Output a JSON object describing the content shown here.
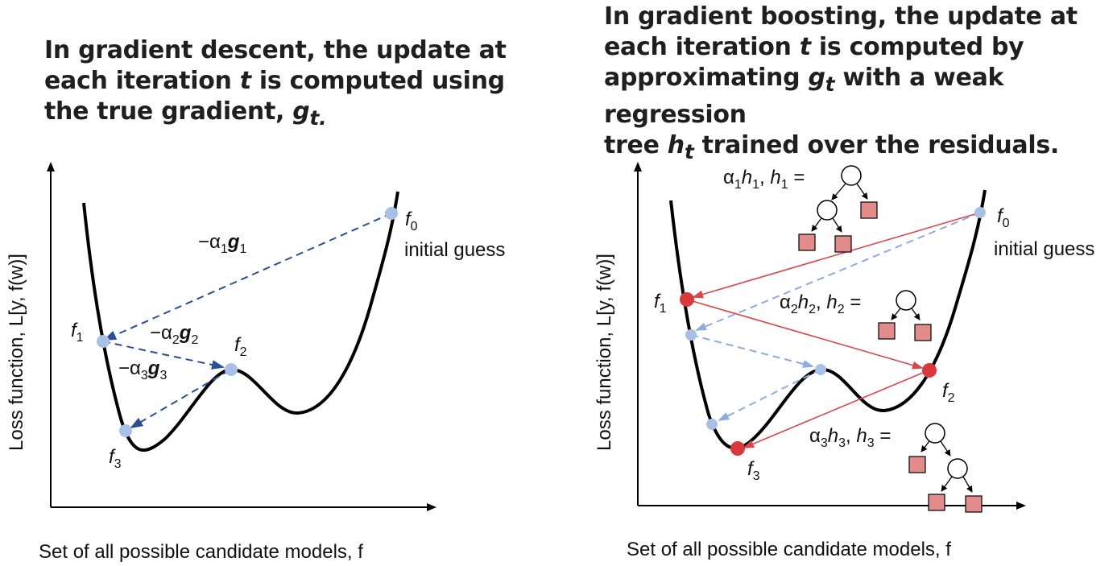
{
  "left_panel": {
    "title_line1": "In gradient descent, the update at",
    "title_line2_pre": "each iteration ",
    "title_t": "t",
    "title_line2_post": " is computed using",
    "title_line3_pre": "the true gradient, ",
    "title_g": "g",
    "title_g_sub": "t.",
    "y_axis_label": "Loss function, L[y, f(w)]",
    "x_axis_label": "Set of all possible candidate models, f",
    "points": {
      "f0": {
        "name": "f",
        "sub": "0",
        "note": "initial guess"
      },
      "f1": {
        "name": "f",
        "sub": "1"
      },
      "f2": {
        "name": "f",
        "sub": "2"
      },
      "f3": {
        "name": "f",
        "sub": "3"
      }
    },
    "steps": [
      {
        "prefix": "−α",
        "sub": "1",
        "g": "g",
        "gsub": "1"
      },
      {
        "prefix": "−α",
        "sub": "2",
        "g": "g",
        "gsub": "2"
      },
      {
        "prefix": "−α",
        "sub": "3",
        "g": "g",
        "gsub": "3"
      }
    ]
  },
  "right_panel": {
    "title_line1": "In gradient boosting, the update at",
    "title_line2_pre": "each iteration ",
    "title_t": "t",
    "title_line2_post": " is computed by",
    "title_line3_pre": "approximating ",
    "title_g": "g",
    "title_g_sub": "t",
    "title_line3_post": " with a weak regression",
    "title_line4_pre": "tree ",
    "title_h": "h",
    "title_h_sub": "t",
    "title_line4_post": " trained over the residuals.",
    "y_axis_label": "Loss function, L[y, f(w)]",
    "x_axis_label": "Set of all possible candidate models, f",
    "points": {
      "f0": {
        "name": "f",
        "sub": "0",
        "note": "initial guess"
      },
      "f1": {
        "name": "f",
        "sub": "1"
      },
      "f2": {
        "name": "f",
        "sub": "2"
      },
      "f3": {
        "name": "f",
        "sub": "3"
      }
    },
    "trees": [
      {
        "alpha": "α",
        "i": "1",
        "h": "h",
        "eq": "="
      },
      {
        "alpha": "α",
        "i": "2",
        "h": "h",
        "eq": "="
      },
      {
        "alpha": "α",
        "i": "3",
        "h": "h",
        "eq": "="
      }
    ]
  },
  "colors": {
    "curve": "#000000",
    "gradient_arrow": "#2a4f96",
    "light_point": "#a9c0e6",
    "light_arrow": "#8fabdd",
    "boost_arrow": "#d9474a",
    "boost_point": "#d9383c",
    "leaf": "#e38c8c"
  }
}
